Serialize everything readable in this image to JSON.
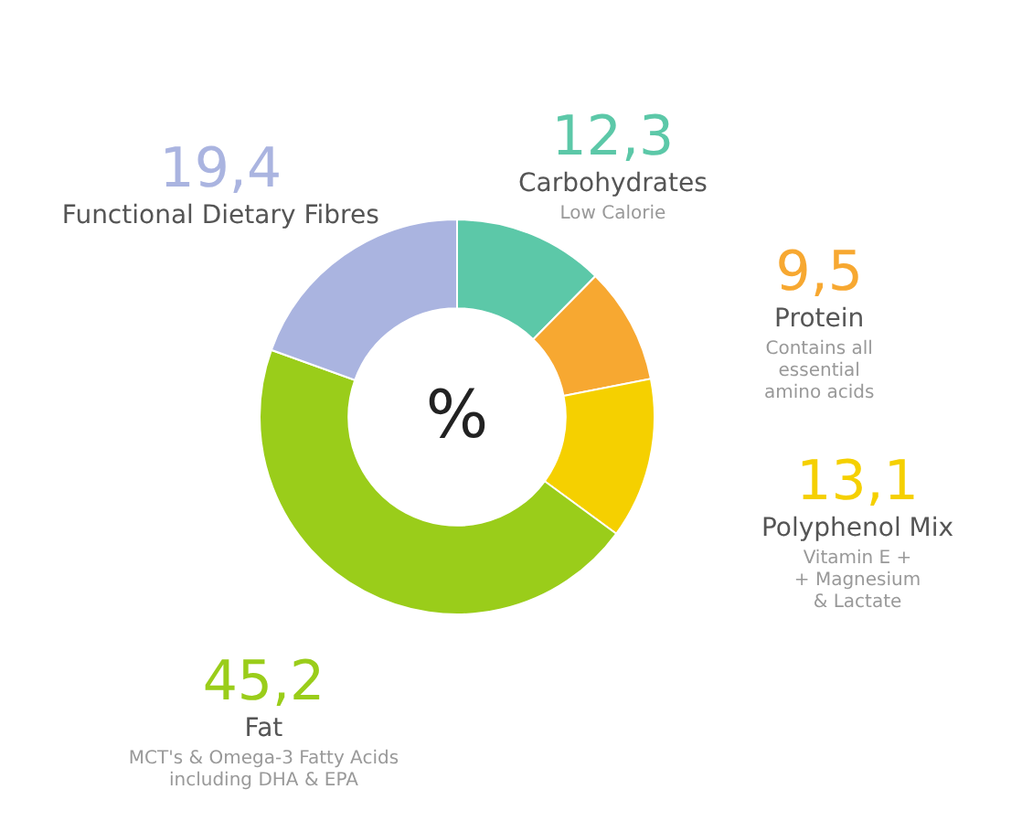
{
  "chart_data": {
    "type": "donut",
    "categories": [
      "Carbohydrates",
      "Protein",
      "Polyphenol Mix",
      "Fat",
      "Functional Dietary Fibres"
    ],
    "values": [
      12.3,
      9.5,
      13.1,
      45.2,
      19.4
    ],
    "value_labels": [
      "12,3",
      "9,5",
      "13,1",
      "45,2",
      "19,4"
    ],
    "colors": [
      "#5cc8a8",
      "#f7a831",
      "#f5d000",
      "#9acd1a",
      "#aab4e0"
    ],
    "annotations": [
      {
        "text": "Low Calorie",
        "x": "Carbohydrates"
      },
      {
        "text": "Contains all\nessential\namino acids",
        "x": "Protein"
      },
      {
        "text": "Vitamin E +\n+ Magnesium\n& Lactate",
        "x": "Polyphenol Mix"
      },
      {
        "text": "MCT's & Omega-3 Fatty Acids\nincluding DHA & EPA",
        "x": "Fat"
      },
      "%"
    ]
  }
}
